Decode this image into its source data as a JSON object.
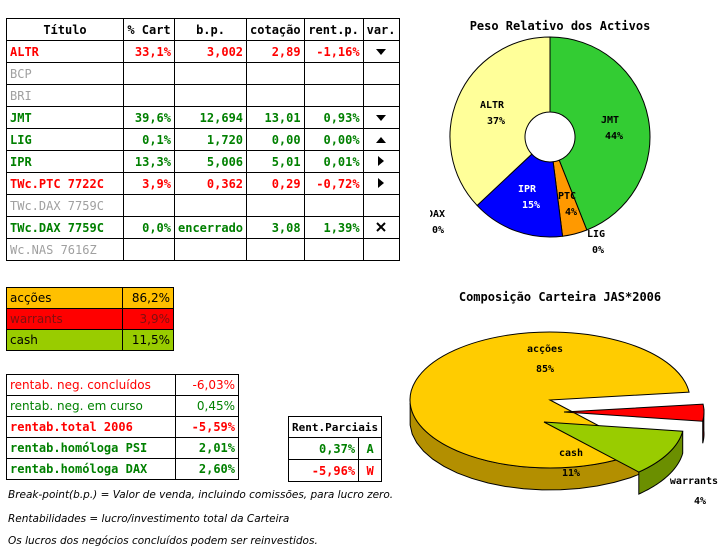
{
  "portfolio_table": {
    "headers": [
      "Título",
      "% Cart",
      "b.p.",
      "cotação",
      "rent.p.",
      "var."
    ],
    "rows": [
      {
        "titulo": "ALTR",
        "cart": "33,1%",
        "bp": "3,002",
        "cot": "2,89",
        "rent": "-1,16%",
        "var_icon": "triangle-down-icon",
        "style": "red",
        "name_style": "red"
      },
      {
        "titulo": "BCP",
        "cart": "",
        "bp": "",
        "cot": "",
        "rent": "",
        "var_icon": "",
        "style": "grey",
        "name_style": "grey"
      },
      {
        "titulo": "BRI",
        "cart": "",
        "bp": "",
        "cot": "",
        "rent": "",
        "var_icon": "",
        "style": "grey",
        "name_style": "grey"
      },
      {
        "titulo": "JMT",
        "cart": "39,6%",
        "bp": "12,694",
        "cot": "13,01",
        "rent": "0,93%",
        "var_icon": "triangle-down-icon",
        "style": "green",
        "name_style": "green"
      },
      {
        "titulo": "LIG",
        "cart": "0,1%",
        "bp": "1,720",
        "cot": "0,00",
        "rent": "0,00%",
        "var_icon": "triangle-up-icon",
        "style": "green",
        "name_style": "green"
      },
      {
        "titulo": "IPR",
        "cart": "13,3%",
        "bp": "5,006",
        "cot": "5,01",
        "rent": "0,01%",
        "var_icon": "triangle-right-icon",
        "style": "green",
        "name_style": "green"
      },
      {
        "titulo": "TWc.PTC 7722C",
        "cart": "3,9%",
        "bp": "0,362",
        "cot": "0,29",
        "rent": "-0,72%",
        "var_icon": "triangle-right-icon",
        "style": "red",
        "name_style": "red"
      },
      {
        "titulo": "TWc.DAX 7759C",
        "cart": "",
        "bp": "",
        "cot": "",
        "rent": "",
        "var_icon": "",
        "style": "grey",
        "name_style": "grey"
      },
      {
        "titulo": "TWc.DAX 7759C",
        "cart": "0,0%",
        "bp": "encerrado",
        "cot": "3,08",
        "rent": "1,39%",
        "var_icon": "cross-icon",
        "style": "green",
        "name_style": "green"
      },
      {
        "titulo": "Wc.NAS 7616Z",
        "cart": "",
        "bp": "",
        "cot": "",
        "rent": "",
        "var_icon": "",
        "style": "grey",
        "name_style": "grey"
      }
    ]
  },
  "allocation": [
    {
      "label": "acções",
      "value": "86,2%",
      "bg": "#ffc000",
      "fg": "#000000"
    },
    {
      "label": "warrants",
      "value": "3,9%",
      "bg": "#ff0000",
      "fg": "#7f1010"
    },
    {
      "label": "cash",
      "value": "11,5%",
      "bg": "#99cc00",
      "fg": "#000000"
    }
  ],
  "returns": [
    {
      "label": "rentab. neg. concluídos",
      "value": "-6,03%",
      "label_color": "#ff0000",
      "value_color": "#ff0000",
      "bold": false
    },
    {
      "label": "rentab. neg. em curso",
      "value": "0,45%",
      "label_color": "#008000",
      "value_color": "#008000",
      "bold": false
    },
    {
      "label": "rentab.total 2006",
      "value": "-5,59%",
      "label_color": "#ff0000",
      "value_color": "#ff0000",
      "bold": true
    },
    {
      "label": "rentab.homóloga PSI",
      "value": "2,01%",
      "label_color": "#008000",
      "value_color": "#008000",
      "bold": true
    },
    {
      "label": "rentab.homóloga DAX",
      "value": "2,60%",
      "label_color": "#008000",
      "value_color": "#008000",
      "bold": true
    }
  ],
  "partials": {
    "header": "Rent.Parciais",
    "rows": [
      {
        "value": "0,37%",
        "flag": "A",
        "color": "#008000"
      },
      {
        "value": "-5,96%",
        "flag": "W",
        "color": "#ff0000"
      }
    ]
  },
  "notes": [
    "Break-point(b.p.) = Valor de venda, incluindo comissões, para lucro zero.",
    "Rentabilidades = lucro/investimento total da Carteira",
    "Os lucros dos negócios concluídos podem ser reinvestidos."
  ],
  "chart_data": [
    {
      "type": "pie",
      "title": "Peso Relativo dos Activos",
      "slices": [
        {
          "label": "JMT",
          "value": 44,
          "value_label": "44%",
          "color": "#33cc33"
        },
        {
          "label": "LIG",
          "value": 0,
          "value_label": "0%",
          "color": "#99cc00"
        },
        {
          "label": "PTC",
          "value": 4,
          "value_label": "4%",
          "color": "#ff9900"
        },
        {
          "label": "IPR",
          "value": 15,
          "value_label": "15%",
          "color": "#0000ff"
        },
        {
          "label": "DAX",
          "value": 0,
          "value_label": "0%",
          "color": "#cc99ff"
        },
        {
          "label": "ALTR",
          "value": 37,
          "value_label": "37%",
          "color": "#ffff99"
        }
      ]
    },
    {
      "type": "pie",
      "title": "Composição Carteira JAS*2006",
      "slices": [
        {
          "label": "acções",
          "value": 85,
          "value_label": "85%",
          "color": "#ffcc00"
        },
        {
          "label": "warrants",
          "value": 4,
          "value_label": "4%",
          "color": "#ff0000"
        },
        {
          "label": "cash",
          "value": 11,
          "value_label": "11%",
          "color": "#99cc00"
        }
      ]
    }
  ]
}
